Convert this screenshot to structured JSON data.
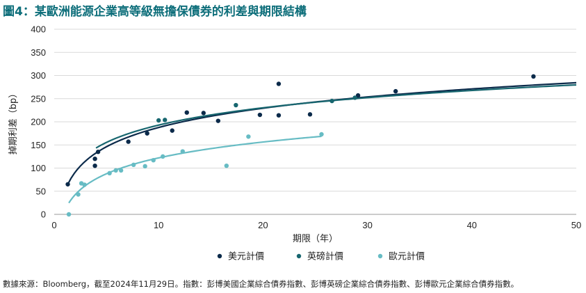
{
  "title": "圖4：某歐洲能源企業高等級無擔保債券的利差與期限結構",
  "footnote": "數據來源：Bloomberg，截至2024年11月29日。指數：彭博美國企業綜合債券指數、彭博英磅企業綜合債券指數、彭博歐元企業綜合債券指數。",
  "colors": {
    "usd": "#0b2a4a",
    "gbp": "#17666f",
    "eur": "#67bcc4",
    "grid": "#d9d9d9",
    "axis": "#999999"
  },
  "chart_data": {
    "type": "scatter",
    "title": "圖4：某歐洲能源企業高等級無擔保債券的利差與期限結構",
    "xlabel": "期限（年）",
    "ylabel": "掉期利差（bp）",
    "xlim": [
      0,
      50
    ],
    "ylim": [
      0,
      400
    ],
    "xticks": [
      0,
      10,
      20,
      30,
      40,
      50
    ],
    "yticks": [
      0,
      50,
      100,
      150,
      200,
      250,
      300,
      350,
      400
    ],
    "grid": "horizontal",
    "legend": "bottom-center",
    "series": [
      {
        "name": "美元計價",
        "color": "#0b2a4a",
        "points": [
          [
            1.3,
            65
          ],
          [
            3.9,
            120
          ],
          [
            3.9,
            105
          ],
          [
            4.2,
            135
          ],
          [
            7.1,
            157
          ],
          [
            8.9,
            175
          ],
          [
            11.3,
            181
          ],
          [
            12.7,
            220
          ],
          [
            14.3,
            219
          ],
          [
            15.7,
            202
          ],
          [
            19.7,
            215
          ],
          [
            21.5,
            282
          ],
          [
            21.5,
            214
          ],
          [
            24.5,
            216
          ],
          [
            29.1,
            257
          ],
          [
            32.7,
            266
          ],
          [
            45.9,
            298
          ]
        ],
        "trend": {
          "kind": "log",
          "a": 49.3,
          "b": 60.1,
          "x_from": 1.3,
          "x_to": 50
        }
      },
      {
        "name": "英磅計價",
        "color": "#17666f",
        "points": [
          [
            10.0,
            203
          ],
          [
            10.6,
            204
          ],
          [
            17.4,
            236
          ],
          [
            26.6,
            245
          ],
          [
            28.8,
            252
          ]
        ],
        "trend": {
          "kind": "log",
          "a": 68.5,
          "b": 54.0,
          "x_from": 4.0,
          "x_to": 50
        }
      },
      {
        "name": "歐元計價",
        "color": "#67bcc4",
        "points": [
          [
            1.4,
            0
          ],
          [
            2.3,
            43
          ],
          [
            2.6,
            67
          ],
          [
            2.9,
            64
          ],
          [
            5.3,
            89
          ],
          [
            5.9,
            95
          ],
          [
            6.4,
            95
          ],
          [
            7.6,
            107
          ],
          [
            8.7,
            104
          ],
          [
            9.5,
            117
          ],
          [
            10.4,
            125
          ],
          [
            12.3,
            136
          ],
          [
            16.5,
            105
          ],
          [
            18.6,
            168
          ],
          [
            25.6,
            173
          ]
        ],
        "trend": {
          "kind": "log",
          "a": 8.0,
          "b": 49.5,
          "x_from": 1.4,
          "x_to": 25.6
        }
      }
    ]
  }
}
